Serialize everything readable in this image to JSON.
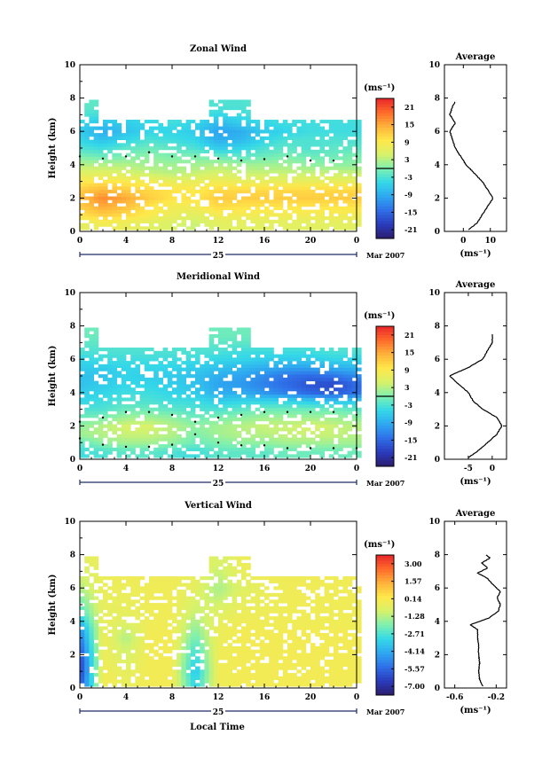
{
  "xaxis": {
    "tick_labels": [
      "0",
      "4",
      "8",
      "12",
      "16",
      "20",
      "0"
    ],
    "day_label": "25",
    "month_label": "Mar 2007",
    "bottom_label": "Local Time"
  },
  "ylabel": "Height (km)",
  "height_ticks": [
    "0",
    "2",
    "4",
    "6",
    "8",
    "10"
  ],
  "unit_label": "(ms⁻¹)",
  "profile_title": "Average",
  "colormap": [
    "#2b1d6b",
    "#2a3bbd",
    "#2f6fe8",
    "#2ea8f0",
    "#34d8e8",
    "#7ef0b0",
    "#d8f26a",
    "#ffe84a",
    "#ffb23a",
    "#ff6a2a",
    "#e8262a"
  ],
  "chart_data": [
    {
      "type": "heatmap",
      "title": "Zonal Wind",
      "xlabel": "",
      "ylabel": "Height (km)",
      "xlim": [
        0,
        24
      ],
      "ylim": [
        0,
        10
      ],
      "colorbar": {
        "ticks": [
          "21",
          "15",
          "9",
          "3",
          "-3",
          "-9",
          "-15",
          "-21"
        ],
        "range": [
          -24,
          24
        ]
      },
      "field": {
        "heights_km": [
          0.5,
          1.0,
          1.5,
          2.0,
          2.5,
          3.0,
          3.5,
          4.0,
          4.5,
          5.0,
          5.5,
          6.0,
          6.5,
          7.0,
          7.5
        ],
        "times_h": [
          0,
          2,
          4,
          6,
          8,
          10,
          12,
          14,
          16,
          18,
          20,
          22,
          24
        ],
        "values_ms": [
          [
            6,
            8,
            7,
            6,
            5,
            4,
            6,
            6,
            6,
            6,
            6,
            6,
            6
          ],
          [
            10,
            12,
            11,
            9,
            7,
            6,
            8,
            8,
            8,
            8,
            8,
            8,
            8
          ],
          [
            12,
            15,
            13,
            10,
            8,
            8,
            11,
            10,
            10,
            10,
            10,
            10,
            10
          ],
          [
            13,
            17,
            15,
            12,
            10,
            10,
            12,
            12,
            12,
            12,
            12,
            12,
            12
          ],
          [
            12,
            14,
            12,
            11,
            10,
            9,
            11,
            11,
            11,
            11,
            11,
            11,
            11
          ],
          [
            9,
            10,
            9,
            8,
            7,
            7,
            8,
            7,
            7,
            7,
            7,
            7,
            7
          ],
          [
            6,
            6,
            5,
            4,
            3,
            4,
            5,
            4,
            4,
            4,
            4,
            4,
            4
          ],
          [
            3,
            3,
            3,
            2,
            2,
            2,
            3,
            2,
            2,
            2,
            1,
            1,
            1
          ],
          [
            0,
            -1,
            0,
            1,
            0,
            0,
            -1,
            -2,
            -1,
            0,
            -1,
            -1,
            0
          ],
          [
            -3,
            -4,
            -2,
            -1,
            -2,
            -3,
            -6,
            -5,
            -3,
            -2,
            -3,
            -2,
            -2
          ],
          [
            -5,
            -7,
            -5,
            -3,
            -4,
            -5,
            -9,
            -8,
            -5,
            -3,
            -3,
            -3,
            -3
          ],
          [
            -6,
            -9,
            -7,
            -5,
            -5,
            -6,
            -10,
            -9,
            -6,
            -5,
            -4,
            -4,
            -4
          ],
          [
            -5,
            -7,
            -6,
            -5,
            -4,
            -5,
            -8,
            -6,
            -5,
            -4,
            -4,
            -4,
            -4
          ],
          [
            -3,
            -4,
            -4,
            -3,
            -3,
            -3,
            -5,
            -4,
            -3,
            -3,
            -3,
            -3,
            -3
          ],
          [
            -2,
            -2,
            -2,
            -2,
            -2,
            -2,
            -3,
            -3,
            -2,
            -2,
            -2,
            -2,
            -2
          ]
        ]
      },
      "contour_level": 0,
      "profile": {
        "title": "Average",
        "xlabel": "(ms⁻¹)",
        "ylabel": "Height (km)",
        "xlim": [
          -7,
          16
        ],
        "ylim": [
          0,
          10
        ],
        "x_ticks": [
          0,
          10
        ],
        "x_tick_labels": [
          "0",
          "10"
        ],
        "heights_km": [
          0.1,
          0.5,
          1.0,
          1.5,
          2.0,
          2.5,
          3.0,
          3.5,
          4.0,
          4.5,
          5.0,
          5.5,
          6.0,
          6.5,
          7.0,
          7.5,
          7.8
        ],
        "values_ms": [
          2,
          5,
          7,
          9,
          11,
          9,
          7,
          4,
          1,
          -1,
          -3,
          -4,
          -5,
          -3,
          -5,
          -4,
          -3
        ]
      }
    },
    {
      "type": "heatmap",
      "title": "Meridional Wind",
      "xlabel": "",
      "ylabel": "Height (km)",
      "xlim": [
        0,
        24
      ],
      "ylim": [
        0,
        10
      ],
      "colorbar": {
        "ticks": [
          "21",
          "15",
          "9",
          "3",
          "-3",
          "-9",
          "-15",
          "-21"
        ],
        "range": [
          -24,
          24
        ]
      },
      "field": {
        "heights_km": [
          0.5,
          1.0,
          1.5,
          2.0,
          2.5,
          3.0,
          3.5,
          4.0,
          4.5,
          5.0,
          5.5,
          6.0,
          6.5,
          7.0,
          7.5
        ],
        "times_h": [
          0,
          2,
          4,
          6,
          8,
          10,
          12,
          14,
          16,
          18,
          20,
          22,
          24
        ],
        "values_ms": [
          [
            -4,
            -3,
            -2,
            -2,
            -3,
            -4,
            -2,
            -2,
            -2,
            -1,
            -1,
            -1,
            -1
          ],
          [
            -2,
            1,
            2,
            2,
            1,
            -1,
            0,
            1,
            1,
            2,
            2,
            2,
            2
          ],
          [
            2,
            3,
            4,
            4,
            3,
            0,
            2,
            3,
            3,
            4,
            4,
            4,
            3
          ],
          [
            1,
            3,
            5,
            5,
            3,
            1,
            2,
            3,
            4,
            4,
            5,
            4,
            3
          ],
          [
            -1,
            0,
            2,
            2,
            1,
            -1,
            0,
            1,
            2,
            2,
            2,
            2,
            1
          ],
          [
            -3,
            -3,
            -1,
            -1,
            -2,
            -3,
            -3,
            -2,
            -1,
            -1,
            -1,
            -1,
            -2
          ],
          [
            -5,
            -4,
            -3,
            -3,
            -4,
            -4,
            -6,
            -5,
            -5,
            -5,
            -6,
            -7,
            -6
          ],
          [
            -6,
            -5,
            -4,
            -4,
            -5,
            -6,
            -9,
            -9,
            -11,
            -13,
            -15,
            -16,
            -14
          ],
          [
            -7,
            -6,
            -5,
            -5,
            -6,
            -7,
            -10,
            -11,
            -13,
            -15,
            -17,
            -18,
            -15
          ],
          [
            -7,
            -7,
            -5,
            -6,
            -6,
            -7,
            -9,
            -10,
            -12,
            -14,
            -15,
            -14,
            -12
          ],
          [
            -6,
            -6,
            -5,
            -5,
            -5,
            -6,
            -7,
            -8,
            -9,
            -10,
            -10,
            -9,
            -8
          ],
          [
            -5,
            -4,
            -4,
            -4,
            -4,
            -4,
            -5,
            -5,
            -6,
            -6,
            -6,
            -5,
            -5
          ],
          [
            -3,
            -3,
            -3,
            -3,
            -3,
            -3,
            -3,
            -4,
            -4,
            -4,
            -4,
            -3,
            -3
          ],
          [
            -2,
            -2,
            -2,
            -2,
            -2,
            -2,
            -2,
            -2,
            -2,
            -2,
            -2,
            -2,
            -2
          ],
          [
            -1,
            -1,
            -1,
            -1,
            -1,
            -1,
            -1,
            -1,
            -1,
            -1,
            -1,
            -1,
            -1
          ]
        ]
      },
      "contour_level": 0,
      "profile": {
        "title": "Average",
        "xlabel": "(ms⁻¹)",
        "ylabel": "Height (km)",
        "xlim": [
          -10,
          3
        ],
        "ylim": [
          0,
          10
        ],
        "x_ticks": [
          -5,
          0
        ],
        "x_tick_labels": [
          "-5",
          "0"
        ],
        "heights_km": [
          0.1,
          0.5,
          1.0,
          1.5,
          2.0,
          2.5,
          3.0,
          3.5,
          4.0,
          4.5,
          5.0,
          5.5,
          6.0,
          6.5,
          7.0,
          7.5
        ],
        "values_ms": [
          -5,
          -3,
          -1,
          1,
          2,
          1,
          -2,
          -4,
          -5,
          -7,
          -9,
          -5,
          -2,
          -1,
          0,
          0
        ]
      }
    },
    {
      "type": "heatmap",
      "title": "Vertical Wind",
      "xlabel": "Local Time",
      "ylabel": "Height (km)",
      "xlim": [
        0,
        24
      ],
      "ylim": [
        0,
        10
      ],
      "colorbar": {
        "ticks": [
          "3.00",
          "1.57",
          "0.14",
          "-1.28",
          "-2.71",
          "-4.14",
          "-5.57",
          "-7.00"
        ],
        "range": [
          -8,
          3.7
        ]
      },
      "field": {
        "heights_km": [
          0.5,
          1.0,
          1.5,
          2.0,
          2.5,
          3.0,
          3.5,
          4.0,
          4.5,
          5.0,
          5.5,
          6.0,
          6.5,
          7.0,
          7.5
        ],
        "times_h": [
          0,
          2,
          4,
          6,
          8,
          10,
          12,
          14,
          16,
          18,
          20,
          22,
          24
        ],
        "values_ms": [
          [
            -6.5,
            -0.2,
            -0.5,
            -0.2,
            -0.2,
            -3.5,
            -0.3,
            -0.2,
            -0.2,
            -0.2,
            -0.2,
            -0.2,
            -0.2
          ],
          [
            -6.8,
            -0.2,
            -0.6,
            -0.2,
            -0.2,
            -3.8,
            -0.3,
            -0.2,
            -0.2,
            -0.2,
            -0.2,
            -0.2,
            -0.2
          ],
          [
            -6.8,
            -0.3,
            -0.8,
            -0.2,
            -0.2,
            -3.5,
            -0.3,
            -0.2,
            -0.2,
            -0.2,
            -0.2,
            -0.2,
            -0.2
          ],
          [
            -6.5,
            -0.3,
            -1.0,
            -0.2,
            -0.2,
            -3.2,
            -0.3,
            -0.2,
            -0.2,
            -0.2,
            -0.2,
            -0.2,
            -0.2
          ],
          [
            -6.0,
            -0.3,
            -1.2,
            -0.2,
            -0.2,
            -2.8,
            -0.4,
            -0.2,
            -0.2,
            -0.2,
            -0.2,
            -0.2,
            -0.2
          ],
          [
            -5.5,
            -0.3,
            -1.5,
            -0.2,
            -0.2,
            -2.4,
            -0.4,
            -0.2,
            -0.2,
            -0.2,
            -0.2,
            -0.2,
            -0.2
          ],
          [
            -5.0,
            -0.4,
            -1.2,
            -0.2,
            -0.2,
            -2.0,
            -0.4,
            -0.2,
            -0.2,
            -0.2,
            -0.2,
            -0.2,
            -0.2
          ],
          [
            -4.0,
            -0.4,
            -0.8,
            -0.3,
            -0.3,
            -1.6,
            -0.5,
            -0.3,
            -0.3,
            -0.3,
            -0.3,
            -0.3,
            -0.3
          ],
          [
            -3.0,
            -0.5,
            -0.6,
            -0.3,
            -0.3,
            -1.2,
            -0.8,
            -0.4,
            -0.3,
            -0.3,
            -0.3,
            -0.3,
            -0.3
          ],
          [
            -2.5,
            -0.5,
            -0.5,
            -0.3,
            -0.3,
            -1.0,
            -1.0,
            -0.5,
            -0.4,
            -0.3,
            -0.3,
            -0.3,
            -0.3
          ],
          [
            -2.0,
            -0.5,
            -0.4,
            -0.3,
            -0.3,
            -0.8,
            -1.4,
            -0.6,
            -0.4,
            -0.3,
            -0.3,
            -0.3,
            -0.3
          ],
          [
            -1.5,
            -0.4,
            -0.4,
            -0.3,
            -0.3,
            -0.6,
            -1.6,
            -0.8,
            -0.4,
            -0.3,
            -0.3,
            -0.3,
            -0.3
          ],
          [
            -1.2,
            -0.4,
            -0.3,
            -0.3,
            -0.3,
            -0.5,
            -1.4,
            -0.6,
            -0.3,
            -0.3,
            -0.3,
            -0.3,
            -0.3
          ],
          [
            -1.0,
            -0.4,
            -0.3,
            -0.3,
            -0.3,
            -0.4,
            -1.2,
            -0.5,
            -0.3,
            -0.3,
            -0.3,
            -0.3,
            -0.3
          ],
          [
            -0.8,
            -0.3,
            -0.3,
            -0.3,
            -0.3,
            -0.3,
            -1.0,
            -0.4,
            -0.3,
            -0.3,
            -0.3,
            -0.3,
            -0.3
          ]
        ]
      },
      "contour_level": null,
      "profile": {
        "title": "Average",
        "xlabel": "(ms⁻¹)",
        "ylabel": "Height (km)",
        "xlim": [
          -0.7,
          -0.1
        ],
        "ylim": [
          0,
          10
        ],
        "x_ticks": [
          -0.6,
          -0.2
        ],
        "x_tick_labels": [
          "-0.6",
          "-0.2"
        ],
        "heights_km": [
          0.1,
          0.5,
          1.0,
          1.5,
          2.0,
          2.5,
          3.0,
          3.5,
          3.8,
          4.2,
          4.6,
          5.0,
          5.4,
          5.8,
          6.2,
          6.6,
          6.9,
          7.2,
          7.5,
          7.8,
          8.0
        ],
        "values_ms": [
          -0.33,
          -0.36,
          -0.37,
          -0.36,
          -0.37,
          -0.37,
          -0.38,
          -0.38,
          -0.45,
          -0.27,
          -0.18,
          -0.16,
          -0.19,
          -0.16,
          -0.23,
          -0.29,
          -0.38,
          -0.28,
          -0.34,
          -0.26,
          -0.3
        ]
      }
    }
  ]
}
